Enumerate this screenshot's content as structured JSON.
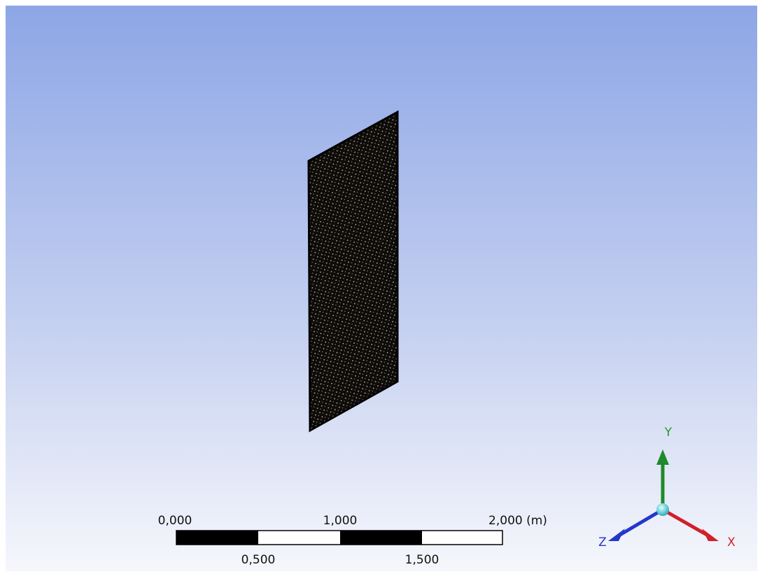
{
  "scale_bar": {
    "top_labels": [
      "0,000",
      "1,000",
      "2,000 (m)"
    ],
    "bottom_labels": [
      "0,500",
      "1,500"
    ]
  },
  "triad": {
    "y": "Y",
    "x": "X",
    "z": "Z"
  }
}
